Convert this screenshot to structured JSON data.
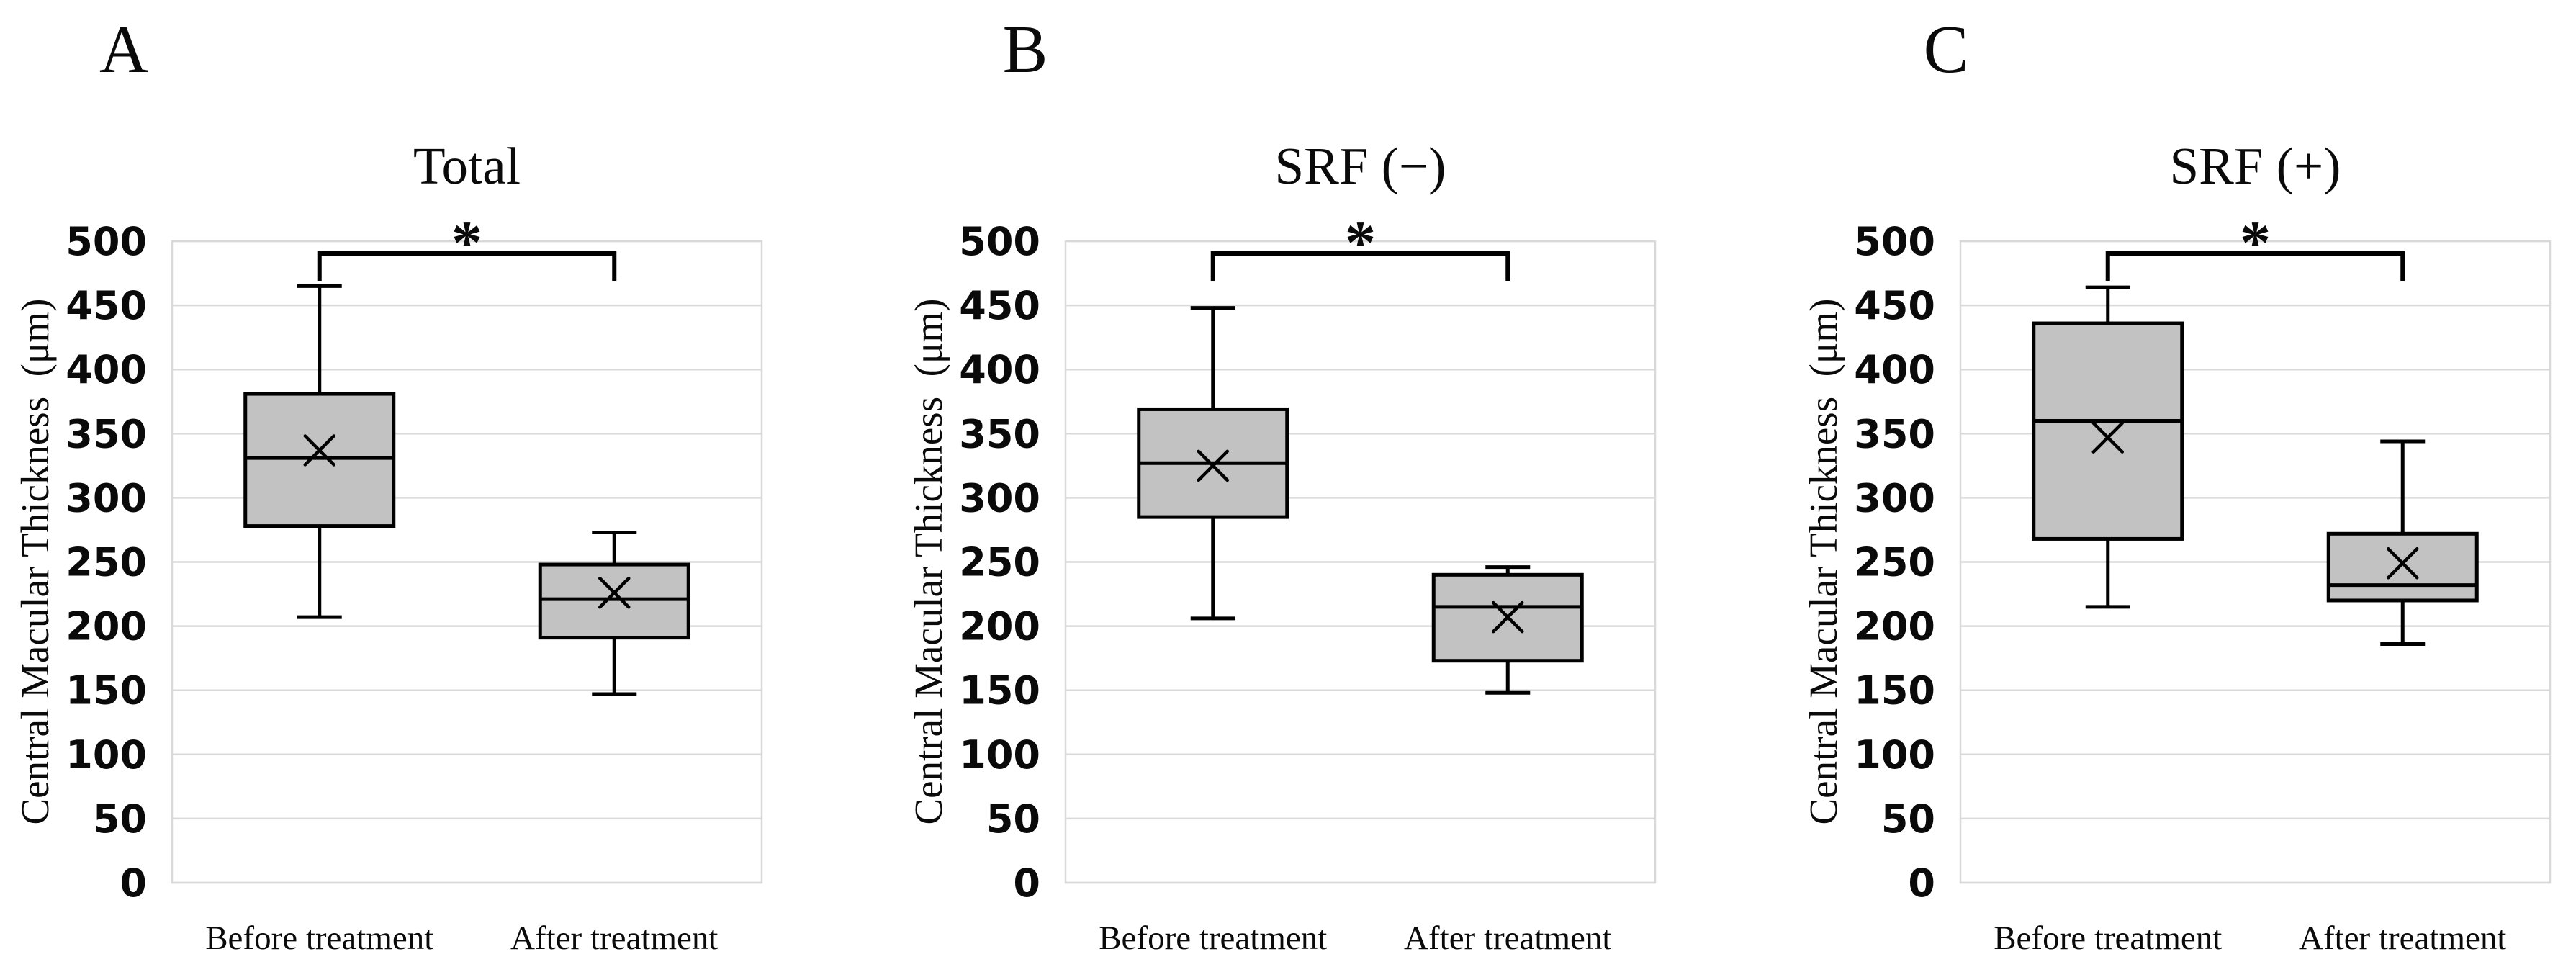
{
  "styles": {
    "background": "#ffffff",
    "box_fill": "#c2c2c2",
    "box_stroke": "#000000",
    "grid_color": "#d9d9d9",
    "text_color": "#0a0a0a"
  },
  "chart_data": [
    {
      "type": "box",
      "panel_letter": "A",
      "title": "Total",
      "ylabel": "Central Macular Thickness  (μm)",
      "xlabel": "",
      "categories": [
        "Before treatment",
        "After treatment"
      ],
      "series": [
        {
          "name": "Before treatment",
          "min": 207,
          "q1": 278,
          "median": 331,
          "mean": 337,
          "q3": 381,
          "max": 465
        },
        {
          "name": "After treatment",
          "min": 147,
          "q1": 191,
          "median": 221,
          "mean": 226,
          "q3": 248,
          "max": 273
        }
      ],
      "ylim": [
        0,
        500
      ],
      "yticks": [
        0,
        50,
        100,
        150,
        200,
        250,
        300,
        350,
        400,
        450,
        500
      ],
      "grid": true,
      "legend": "none",
      "significance": {
        "label": "*",
        "between": [
          "Before treatment",
          "After treatment"
        ]
      }
    },
    {
      "type": "box",
      "panel_letter": "B",
      "title": "SRF (−)",
      "ylabel": "Central Macular Thickness  (μm)",
      "xlabel": "",
      "categories": [
        "Before treatment",
        "After treatment"
      ],
      "series": [
        {
          "name": "Before treatment",
          "min": 206,
          "q1": 285,
          "median": 327,
          "mean": 325,
          "q3": 369,
          "max": 448
        },
        {
          "name": "After treatment",
          "min": 148,
          "q1": 173,
          "median": 215,
          "mean": 207,
          "q3": 240,
          "max": 246
        }
      ],
      "ylim": [
        0,
        500
      ],
      "yticks": [
        0,
        50,
        100,
        150,
        200,
        250,
        300,
        350,
        400,
        450,
        500
      ],
      "grid": true,
      "legend": "none",
      "significance": {
        "label": "*",
        "between": [
          "Before treatment",
          "After treatment"
        ]
      }
    },
    {
      "type": "box",
      "panel_letter": "C",
      "title": "SRF (+)",
      "ylabel": "Central Macular Thickness  (μm)",
      "xlabel": "",
      "categories": [
        "Before treatment",
        "After treatment"
      ],
      "series": [
        {
          "name": "Before treatment",
          "min": 215,
          "q1": 268,
          "median": 360,
          "mean": 347,
          "q3": 436,
          "max": 464
        },
        {
          "name": "After treatment",
          "min": 186,
          "q1": 220,
          "median": 232,
          "mean": 249,
          "q3": 272,
          "max": 344
        }
      ],
      "ylim": [
        0,
        500
      ],
      "yticks": [
        0,
        50,
        100,
        150,
        200,
        250,
        300,
        350,
        400,
        450,
        500
      ],
      "grid": true,
      "legend": "none",
      "significance": {
        "label": "*",
        "between": [
          "Before treatment",
          "After treatment"
        ]
      }
    }
  ]
}
